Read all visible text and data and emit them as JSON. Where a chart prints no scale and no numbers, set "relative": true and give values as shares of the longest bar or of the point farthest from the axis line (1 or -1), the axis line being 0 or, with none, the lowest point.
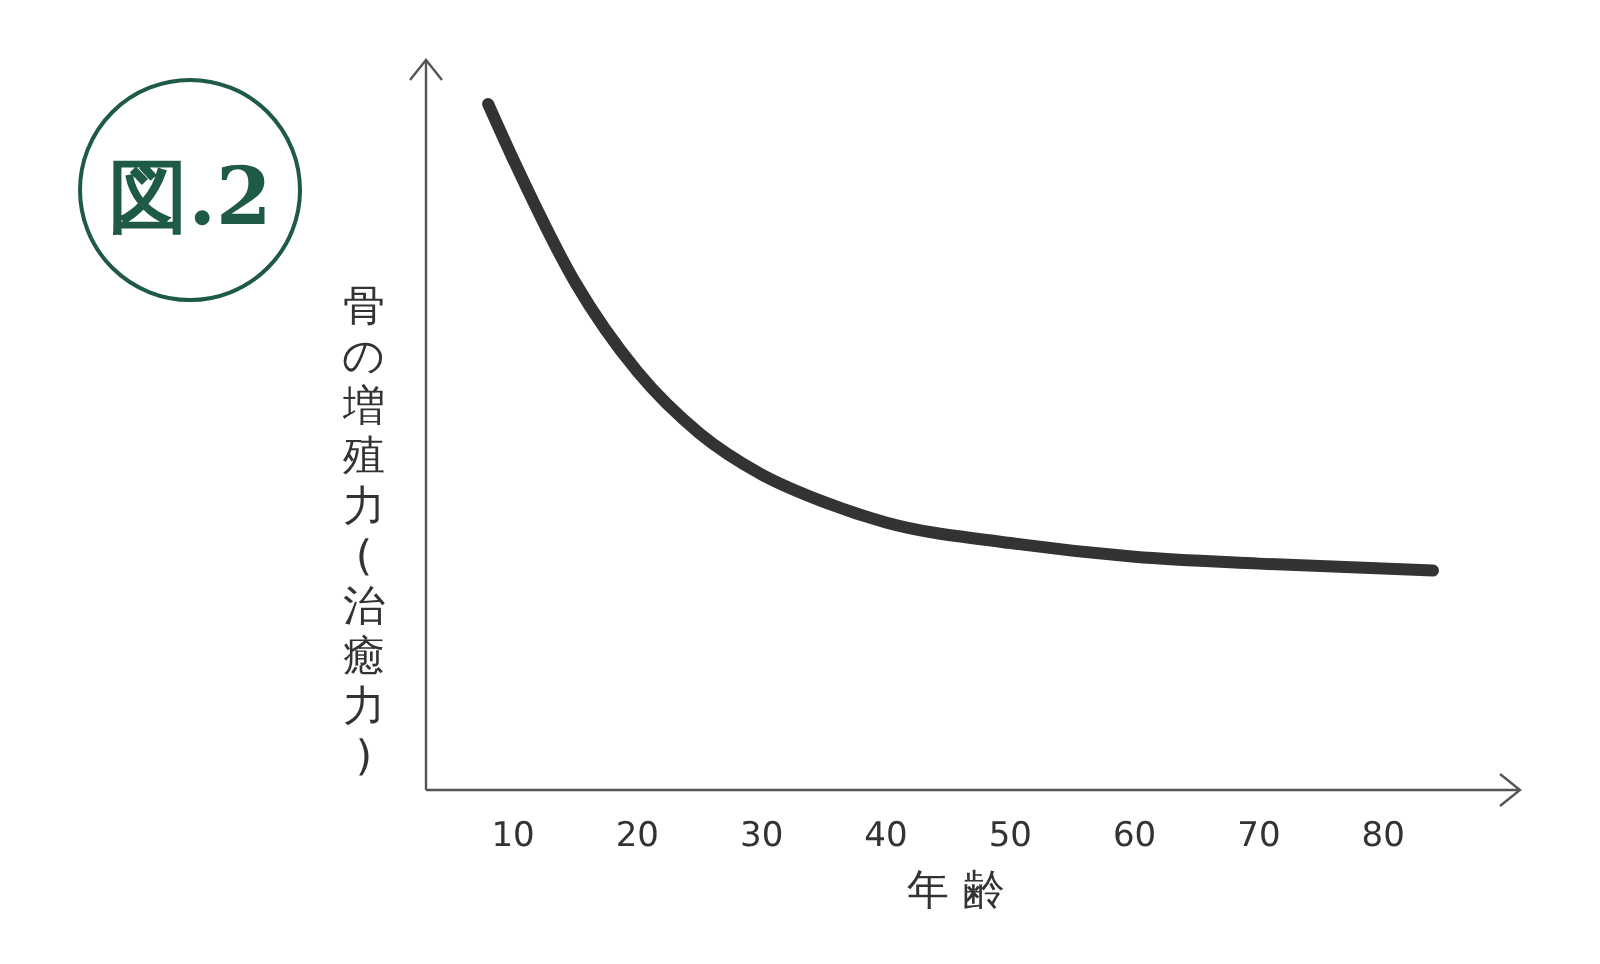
{
  "chart_data": {
    "type": "line",
    "title": "図.2",
    "xlabel": "年 齢",
    "ylabel": "骨の増殖力(治癒力)",
    "relative": true,
    "color": "#333333",
    "x": [
      8,
      10,
      15,
      20,
      25,
      30,
      35,
      40,
      50,
      60,
      70,
      84
    ],
    "values": [
      1,
      0.92,
      0.74,
      0.61,
      0.52,
      0.46,
      0.42,
      0.39,
      0.36,
      0.34,
      0.33,
      0.32
    ],
    "xlim": [
      3,
      91
    ],
    "xticks": [
      10,
      20,
      30,
      40,
      50,
      60,
      70,
      80
    ]
  }
}
